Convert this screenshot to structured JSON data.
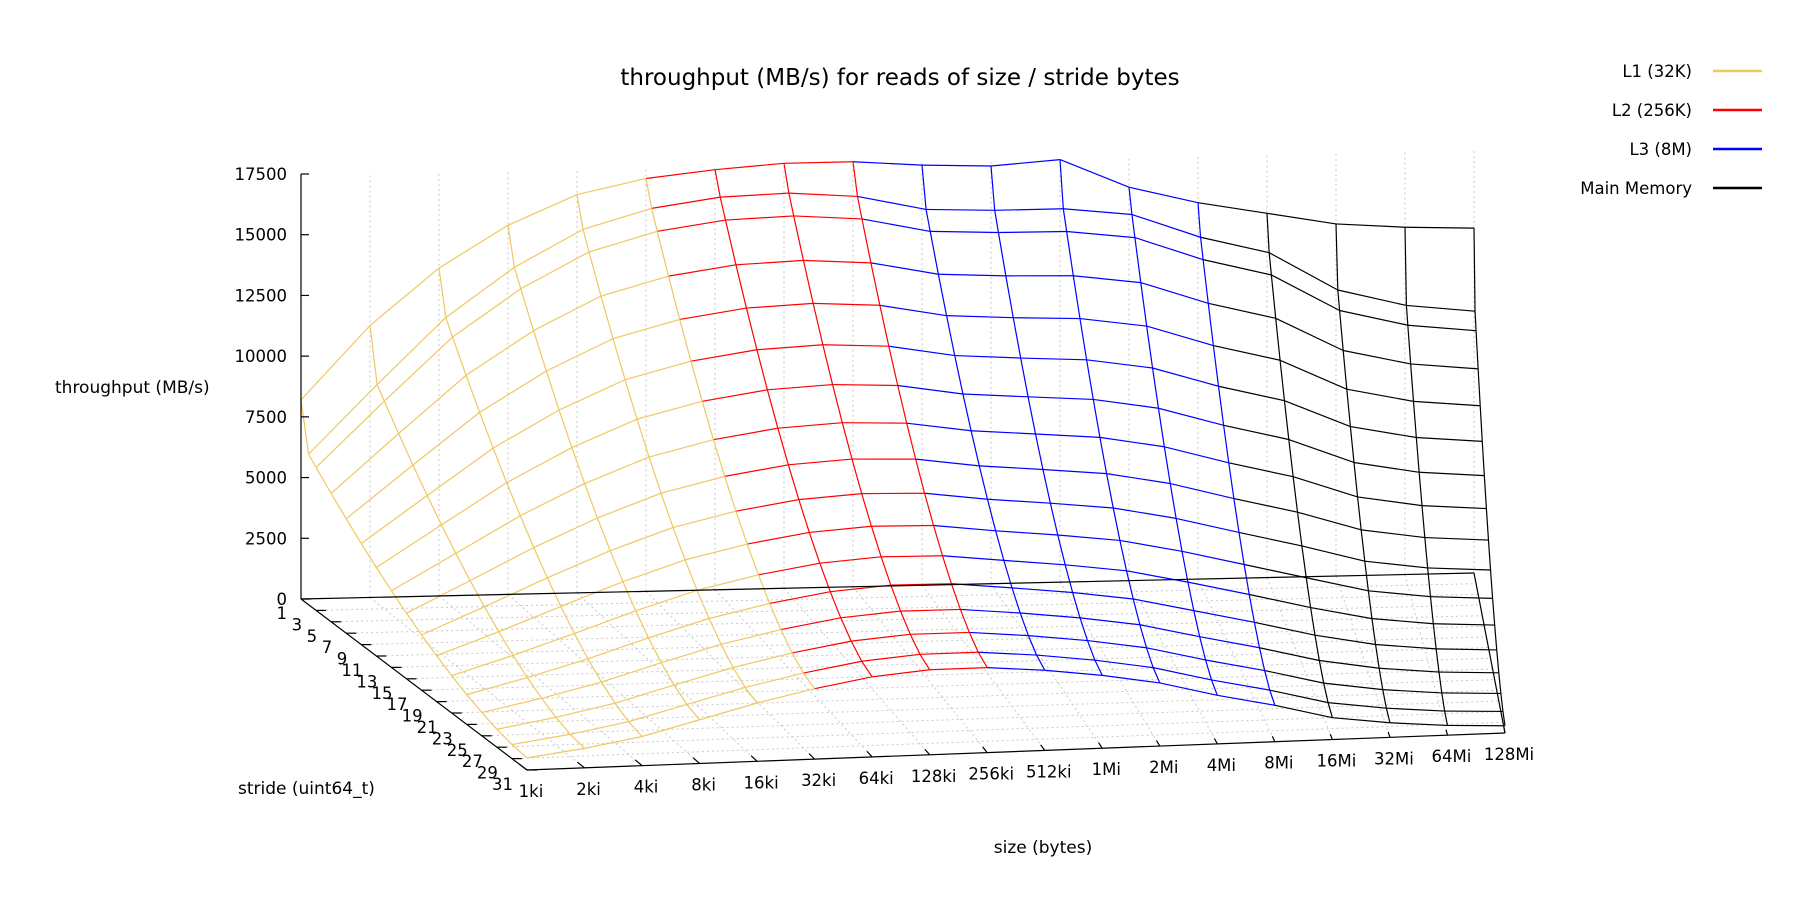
{
  "chart_data": {
    "type": "surface",
    "title": "throughput (MB/s) for reads of size / stride bytes",
    "zlabel": "throughput (MB/s)",
    "ylabel": "stride (uint64_t)",
    "xlabel": "size (bytes)",
    "zlim": [
      0,
      17500
    ],
    "grid": true,
    "legend_position": "top-right",
    "z_ticks": [
      "0",
      "2500",
      "5000",
      "7500",
      "10000",
      "12500",
      "15000",
      "17500"
    ],
    "size_ticks": [
      "1ki",
      "2ki",
      "4ki",
      "8ki",
      "16ki",
      "32ki",
      "64ki",
      "128ki",
      "256ki",
      "512ki",
      "1Mi",
      "2Mi",
      "4Mi",
      "8Mi",
      "16Mi",
      "32Mi",
      "64Mi",
      "128Mi"
    ],
    "stride_ticks": [
      "1",
      "3",
      "5",
      "7",
      "9",
      "11",
      "13",
      "15",
      "17",
      "19",
      "21",
      "23",
      "25",
      "27",
      "29",
      "31"
    ],
    "series": [
      {
        "name": "L1 (32K)",
        "color": "#f0c860",
        "size_range": [
          "1ki",
          "32ki"
        ]
      },
      {
        "name": "L2 (256K)",
        "color": "#ff0000",
        "size_range": [
          "32ki",
          "256ki"
        ]
      },
      {
        "name": "L3 (8M)",
        "color": "#0000ff",
        "size_range": [
          "256ki",
          "8Mi"
        ]
      },
      {
        "name": "Main Memory",
        "color": "#000000",
        "size_range": [
          "8Mi",
          "128Mi"
        ]
      }
    ],
    "strides_sampled": [
      1,
      2,
      3,
      5,
      7,
      9,
      11,
      13,
      15,
      17,
      19,
      21,
      23,
      25,
      27,
      29,
      31
    ],
    "throughput_stride_1": [
      8200,
      11200,
      13500,
      15200,
      16400,
      17000,
      17300,
      17500,
      17500,
      17300,
      17200,
      17400,
      16200,
      15500,
      15000,
      14500,
      14300,
      14200
    ],
    "throughput_stride_2": [
      6200,
      9000,
      11700,
      13700,
      15200,
      16000,
      16400,
      16500,
      16300,
      15700,
      15600,
      15600,
      15300,
      14300,
      13600,
      12000,
      11300,
      11000
    ],
    "throughput_stride_31": [
      500,
      800,
      1200,
      1800,
      2400,
      2900,
      3300,
      3500,
      3500,
      3300,
      3000,
      2600,
      2000,
      1500,
      900,
      600,
      400,
      300
    ]
  }
}
